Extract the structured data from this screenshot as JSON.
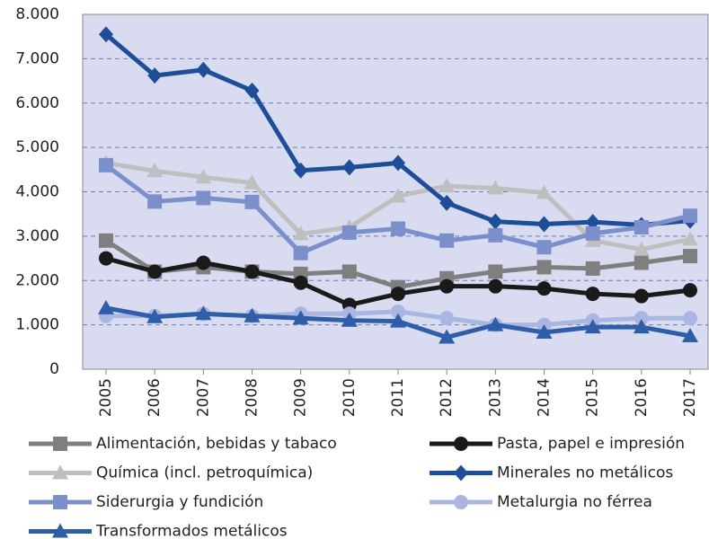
{
  "chart_data": {
    "type": "line",
    "categories": [
      "2005",
      "2006",
      "2007",
      "2008",
      "2009",
      "2010",
      "2011",
      "2012",
      "2013",
      "2014",
      "2015",
      "2016",
      "2017"
    ],
    "ylim": [
      0,
      8000
    ],
    "yticks": [
      0,
      {
        "value": 1000,
        "label": "1.000"
      },
      {
        "value": 2000,
        "label": "2.000"
      },
      {
        "value": 3000,
        "label": "3.000"
      },
      {
        "value": 4000,
        "label": "4.000"
      },
      {
        "value": 5000,
        "label": "5.000"
      },
      {
        "value": 6000,
        "label": "6.000"
      },
      {
        "value": 7000,
        "label": "7.000"
      },
      {
        "value": 8000,
        "label": "8.000"
      }
    ],
    "grid": true,
    "series": [
      {
        "name": "Alimentación, bebidas y tabaco",
        "color": "#7f7f7f",
        "marker": "square",
        "values": [
          2900,
          2200,
          2300,
          2200,
          2150,
          2200,
          1850,
          2050,
          2200,
          2300,
          2270,
          2400,
          2550
        ]
      },
      {
        "name": "Pasta, papel e impresión",
        "color": "#1a1a1a",
        "marker": "circle",
        "values": [
          2500,
          2200,
          2400,
          2200,
          1950,
          1450,
          1700,
          1870,
          1870,
          1820,
          1700,
          1650,
          1780
        ]
      },
      {
        "name": "Química (incl. petroquímica)",
        "color": "#bfbfbf",
        "marker": "triangle",
        "values": [
          4650,
          4470,
          4330,
          4200,
          3050,
          3200,
          3900,
          4130,
          4080,
          3980,
          2900,
          2700,
          2930
        ]
      },
      {
        "name": "Minerales no metálicos",
        "color": "#1f4e99",
        "marker": "diamond",
        "values": [
          7550,
          6620,
          6750,
          6280,
          4480,
          4550,
          4650,
          3750,
          3330,
          3270,
          3320,
          3250,
          3350
        ]
      },
      {
        "name": "Siderurgia y fundición",
        "color": "#7b8fcb",
        "marker": "square",
        "values": [
          4600,
          3780,
          3860,
          3770,
          2620,
          3080,
          3170,
          2900,
          3020,
          2750,
          3060,
          3200,
          3460
        ]
      },
      {
        "name": "Metalurgia no férrea",
        "color": "#aab6e2",
        "marker": "circle",
        "values": [
          1200,
          1200,
          1250,
          1200,
          1250,
          1250,
          1300,
          1150,
          1000,
          1000,
          1100,
          1150,
          1150
        ]
      },
      {
        "name": "Transformados metálicos",
        "color": "#2e5ea8",
        "marker": "triangle",
        "values": [
          1380,
          1180,
          1250,
          1200,
          1150,
          1100,
          1080,
          720,
          1000,
          830,
          950,
          950,
          750
        ]
      }
    ]
  }
}
